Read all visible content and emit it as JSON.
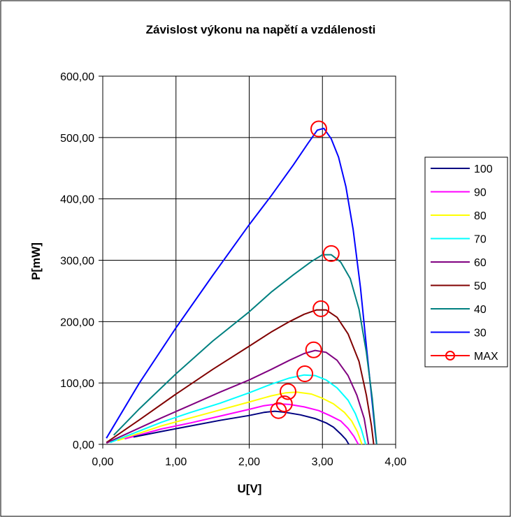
{
  "chart_data": {
    "type": "line",
    "title": "Závislost výkonu na napětí a vzdálenosti",
    "xlabel": "U[V]",
    "ylabel": "P[mW]",
    "xlim": [
      0,
      4
    ],
    "ylim": [
      0,
      600
    ],
    "x_ticks": [
      "0,00",
      "1,00",
      "2,00",
      "3,00",
      "4,00"
    ],
    "y_ticks": [
      "0,00",
      "100,00",
      "200,00",
      "300,00",
      "400,00",
      "500,00",
      "600,00"
    ],
    "grid": true,
    "legend_position": "right",
    "series": [
      {
        "name": "100",
        "color": "#000080",
        "points": [
          [
            0.42,
            12
          ],
          [
            0.8,
            21
          ],
          [
            1.2,
            30
          ],
          [
            1.6,
            39
          ],
          [
            2.0,
            47
          ],
          [
            2.2,
            52
          ],
          [
            2.35,
            54
          ],
          [
            2.5,
            52
          ],
          [
            2.7,
            48
          ],
          [
            2.9,
            42
          ],
          [
            3.05,
            35
          ],
          [
            3.15,
            28
          ],
          [
            3.25,
            17
          ],
          [
            3.32,
            8
          ],
          [
            3.36,
            0
          ]
        ]
      },
      {
        "name": "90",
        "color": "#ff00ff",
        "points": [
          [
            0.3,
            9
          ],
          [
            0.8,
            25
          ],
          [
            1.2,
            35
          ],
          [
            1.6,
            46
          ],
          [
            2.0,
            57
          ],
          [
            2.2,
            63
          ],
          [
            2.4,
            66
          ],
          [
            2.55,
            65
          ],
          [
            2.75,
            61
          ],
          [
            2.95,
            55
          ],
          [
            3.1,
            47
          ],
          [
            3.25,
            38
          ],
          [
            3.35,
            26
          ],
          [
            3.43,
            13
          ],
          [
            3.49,
            0
          ]
        ]
      },
      {
        "name": "80",
        "color": "#ffff00",
        "points": [
          [
            0.2,
            6
          ],
          [
            0.8,
            30
          ],
          [
            1.2,
            43
          ],
          [
            1.6,
            56
          ],
          [
            2.0,
            69
          ],
          [
            2.3,
            79
          ],
          [
            2.5,
            84
          ],
          [
            2.65,
            85
          ],
          [
            2.85,
            82
          ],
          [
            3.0,
            75
          ],
          [
            3.15,
            66
          ],
          [
            3.3,
            52
          ],
          [
            3.4,
            38
          ],
          [
            3.48,
            20
          ],
          [
            3.54,
            0
          ]
        ]
      },
      {
        "name": "70",
        "color": "#00ffff",
        "points": [
          [
            0.1,
            3
          ],
          [
            0.8,
            36
          ],
          [
            1.2,
            52
          ],
          [
            1.6,
            67
          ],
          [
            2.0,
            84
          ],
          [
            2.3,
            98
          ],
          [
            2.55,
            108
          ],
          [
            2.75,
            113
          ],
          [
            2.9,
            112
          ],
          [
            3.05,
            105
          ],
          [
            3.2,
            92
          ],
          [
            3.35,
            72
          ],
          [
            3.45,
            50
          ],
          [
            3.53,
            25
          ],
          [
            3.59,
            0
          ]
        ]
      },
      {
        "name": "60",
        "color": "#800080",
        "points": [
          [
            0.05,
            2
          ],
          [
            0.8,
            43
          ],
          [
            1.2,
            64
          ],
          [
            1.6,
            85
          ],
          [
            2.0,
            105
          ],
          [
            2.3,
            122
          ],
          [
            2.55,
            137
          ],
          [
            2.75,
            148
          ],
          [
            2.9,
            153
          ],
          [
            3.05,
            150
          ],
          [
            3.2,
            137
          ],
          [
            3.35,
            112
          ],
          [
            3.47,
            80
          ],
          [
            3.57,
            42
          ],
          [
            3.63,
            0
          ]
        ]
      },
      {
        "name": "50",
        "color": "#800000",
        "points": [
          [
            0.05,
            3
          ],
          [
            0.5,
            40
          ],
          [
            1.0,
            82
          ],
          [
            1.5,
            122
          ],
          [
            2.0,
            160
          ],
          [
            2.3,
            183
          ],
          [
            2.55,
            200
          ],
          [
            2.75,
            212
          ],
          [
            2.92,
            219
          ],
          [
            3.05,
            219
          ],
          [
            3.2,
            207
          ],
          [
            3.35,
            180
          ],
          [
            3.5,
            135
          ],
          [
            3.6,
            80
          ],
          [
            3.67,
            30
          ],
          [
            3.7,
            0
          ]
        ]
      },
      {
        "name": "40",
        "color": "#008080",
        "points": [
          [
            0.15,
            15
          ],
          [
            0.5,
            58
          ],
          [
            1.0,
            115
          ],
          [
            1.5,
            168
          ],
          [
            2.0,
            216
          ],
          [
            2.3,
            248
          ],
          [
            2.6,
            276
          ],
          [
            2.85,
            298
          ],
          [
            3.0,
            309
          ],
          [
            3.12,
            309
          ],
          [
            3.25,
            297
          ],
          [
            3.38,
            270
          ],
          [
            3.5,
            220
          ],
          [
            3.6,
            150
          ],
          [
            3.68,
            75
          ],
          [
            3.74,
            0
          ]
        ]
      },
      {
        "name": "30",
        "color": "#0000ff",
        "points": [
          [
            0.05,
            10
          ],
          [
            0.5,
            100
          ],
          [
            1.0,
            190
          ],
          [
            1.5,
            275
          ],
          [
            2.0,
            358
          ],
          [
            2.3,
            405
          ],
          [
            2.6,
            455
          ],
          [
            2.8,
            490
          ],
          [
            2.93,
            512
          ],
          [
            3.02,
            515
          ],
          [
            3.12,
            498
          ],
          [
            3.22,
            468
          ],
          [
            3.32,
            420
          ],
          [
            3.42,
            350
          ],
          [
            3.52,
            255
          ],
          [
            3.6,
            160
          ],
          [
            3.67,
            80
          ],
          [
            3.72,
            20
          ],
          [
            3.74,
            0
          ]
        ]
      }
    ],
    "max_points": {
      "name": "MAX",
      "color": "#ff0000",
      "points": [
        [
          2.4,
          55
        ],
        [
          2.48,
          66
        ],
        [
          2.53,
          86
        ],
        [
          2.76,
          115
        ],
        [
          2.88,
          154
        ],
        [
          2.98,
          221
        ],
        [
          3.12,
          311
        ],
        [
          2.95,
          514
        ]
      ]
    }
  }
}
